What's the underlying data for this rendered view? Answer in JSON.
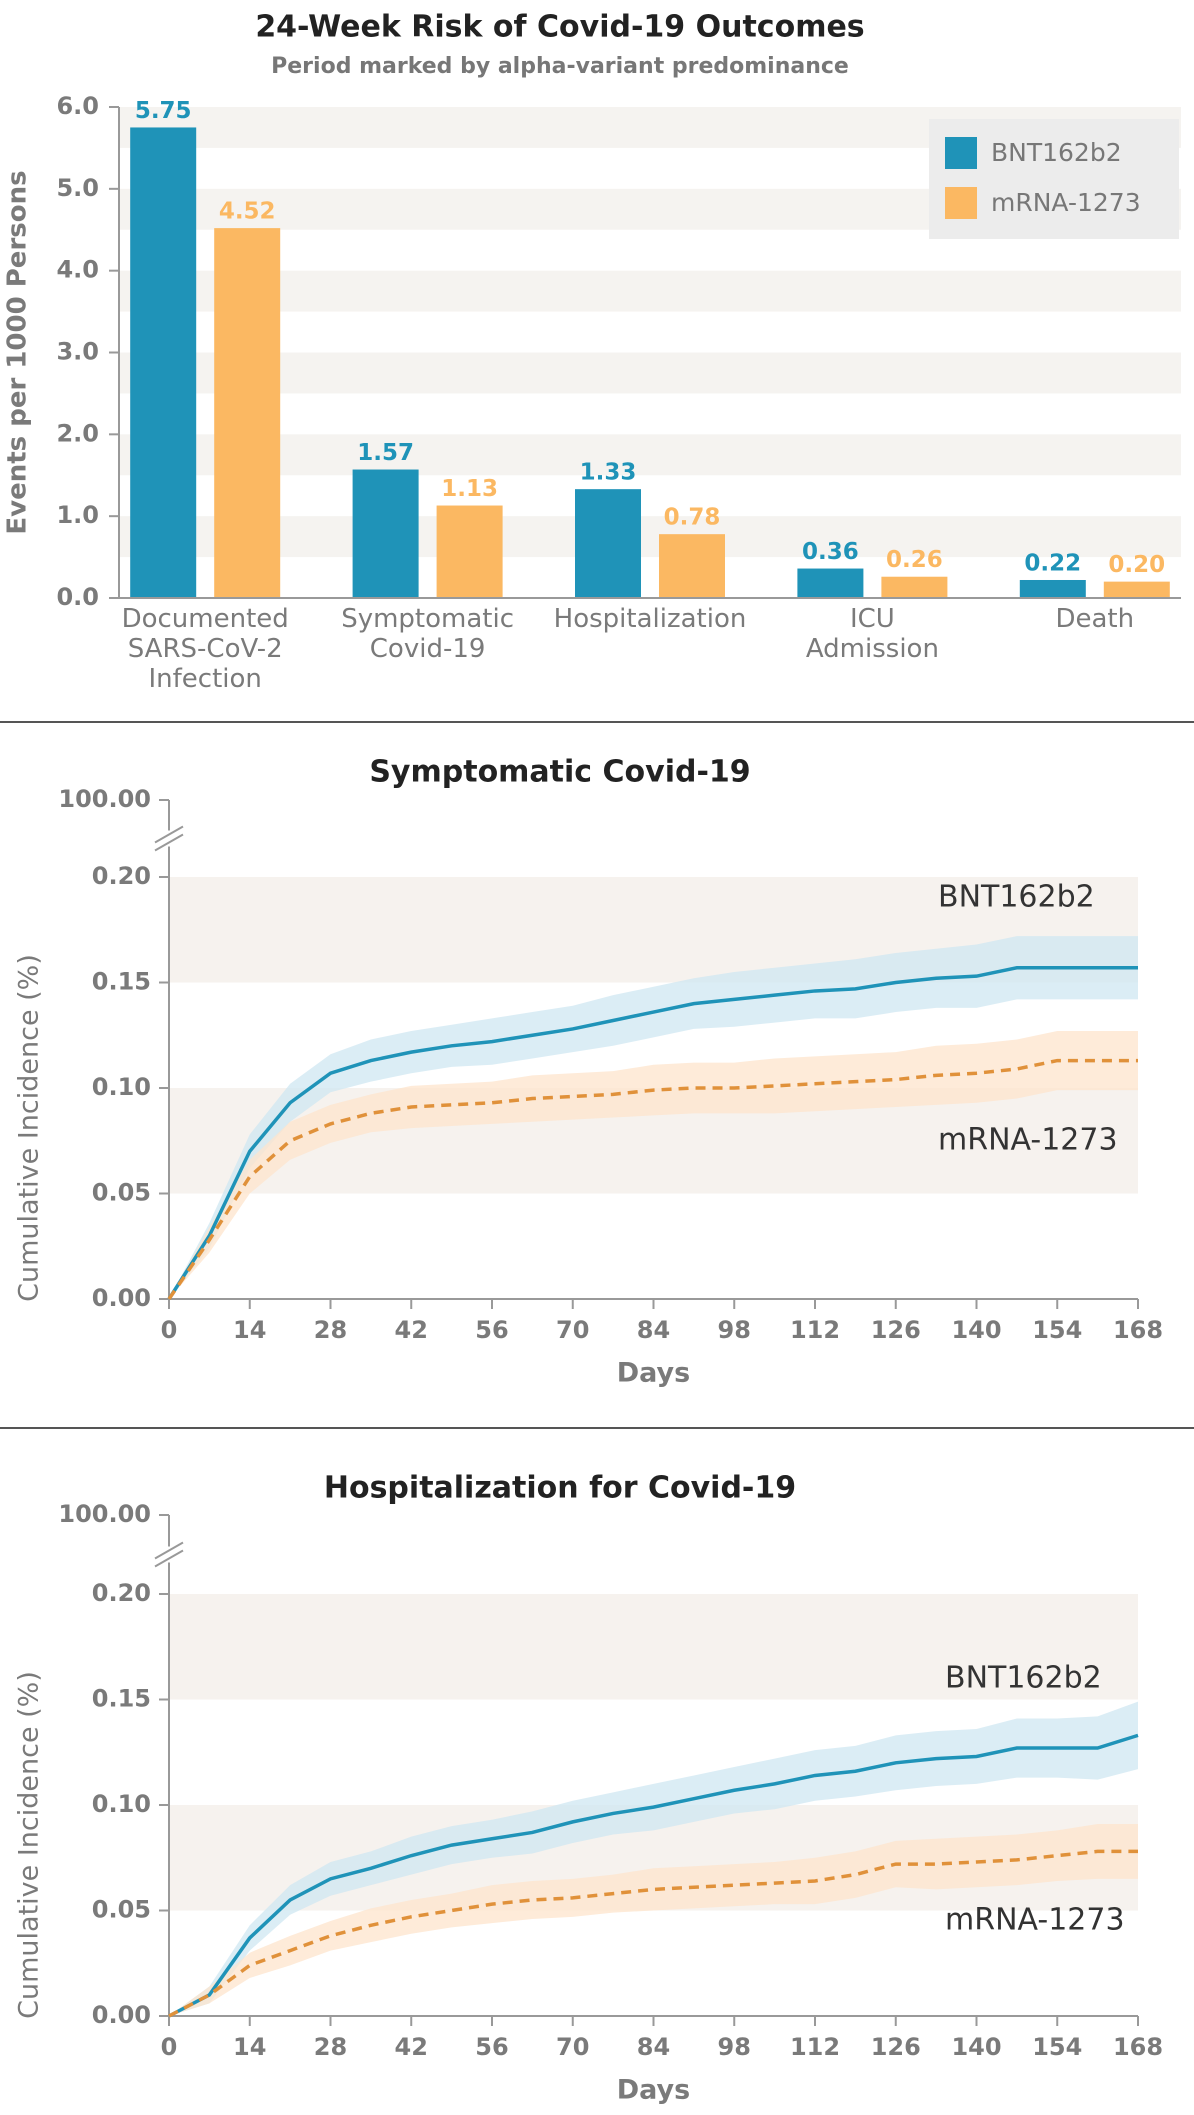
{
  "chart_data": [
    {
      "type": "bar",
      "title": "24-Week Risk of Covid-19 Outcomes",
      "subtitle": "Period marked by alpha-variant predominance",
      "ylabel": "Events per 1000 Persons",
      "categories": [
        "Documented\nSARS-CoV-2\nInfection",
        "Symptomatic\nCovid-19",
        "Hospitalization",
        "ICU\nAdmission",
        "Death"
      ],
      "series": [
        {
          "name": "BNT162b2",
          "color": "#1f93b8",
          "values": [
            5.75,
            1.57,
            1.33,
            0.36,
            0.22
          ],
          "value_labels": [
            "5.75",
            "1.57",
            "1.33",
            "0.36",
            "0.22"
          ]
        },
        {
          "name": "mRNA-1273",
          "color": "#fbb862",
          "values": [
            4.52,
            1.13,
            0.78,
            0.26,
            0.2
          ],
          "value_labels": [
            "4.52",
            "1.13",
            "0.78",
            "0.26",
            "0.20"
          ]
        }
      ],
      "ylim": [
        0,
        6
      ],
      "yticks": [
        {
          "value": 0,
          "label": "0.0"
        },
        {
          "value": 1,
          "label": "1.0"
        },
        {
          "value": 2,
          "label": "2.0"
        },
        {
          "value": 3,
          "label": "3.0"
        },
        {
          "value": 4,
          "label": "4.0"
        },
        {
          "value": 5,
          "label": "5.0"
        },
        {
          "value": 6,
          "label": "6.0"
        }
      ],
      "grid": "half-bands",
      "legend": "top-right"
    },
    {
      "type": "line",
      "title": "Symptomatic Covid-19",
      "xlabel": "Days",
      "ylabel": "Cumulative Incidence (%)",
      "x": [
        0,
        7,
        14,
        21,
        28,
        35,
        42,
        49,
        56,
        63,
        70,
        77,
        84,
        91,
        98,
        105,
        112,
        119,
        126,
        133,
        140,
        147,
        154,
        161,
        168
      ],
      "series": [
        {
          "name": "BNT162b2",
          "color": "#1f93b8",
          "band_color": "#cfe7f1",
          "dashed": false,
          "values": [
            0,
            0.03,
            0.07,
            0.093,
            0.107,
            0.113,
            0.117,
            0.12,
            0.122,
            0.125,
            0.128,
            0.132,
            0.136,
            0.14,
            0.142,
            0.144,
            0.146,
            0.147,
            0.15,
            0.152,
            0.153,
            0.157,
            0.157,
            0.157,
            0.157
          ],
          "lower": [
            0,
            0.024,
            0.062,
            0.084,
            0.098,
            0.103,
            0.107,
            0.11,
            0.111,
            0.114,
            0.117,
            0.12,
            0.124,
            0.128,
            0.129,
            0.131,
            0.133,
            0.133,
            0.136,
            0.138,
            0.138,
            0.142,
            0.142,
            0.142,
            0.142
          ],
          "upper": [
            0,
            0.036,
            0.078,
            0.102,
            0.116,
            0.123,
            0.127,
            0.13,
            0.133,
            0.136,
            0.139,
            0.144,
            0.148,
            0.152,
            0.155,
            0.157,
            0.159,
            0.161,
            0.164,
            0.166,
            0.168,
            0.172,
            0.172,
            0.172,
            0.172
          ]
        },
        {
          "name": "mRNA-1273",
          "color": "#e0913a",
          "band_color": "#fde4cc",
          "dashed": true,
          "values": [
            0,
            0.028,
            0.058,
            0.075,
            0.083,
            0.088,
            0.091,
            0.092,
            0.093,
            0.095,
            0.096,
            0.097,
            0.099,
            0.1,
            0.1,
            0.101,
            0.102,
            0.103,
            0.104,
            0.106,
            0.107,
            0.109,
            0.113,
            0.113,
            0.113
          ],
          "lower": [
            0,
            0.022,
            0.05,
            0.066,
            0.074,
            0.079,
            0.081,
            0.082,
            0.083,
            0.084,
            0.085,
            0.086,
            0.087,
            0.088,
            0.088,
            0.088,
            0.089,
            0.09,
            0.091,
            0.092,
            0.093,
            0.095,
            0.099,
            0.099,
            0.099
          ],
          "upper": [
            0,
            0.034,
            0.066,
            0.084,
            0.092,
            0.097,
            0.101,
            0.102,
            0.103,
            0.106,
            0.107,
            0.108,
            0.111,
            0.112,
            0.112,
            0.114,
            0.115,
            0.116,
            0.117,
            0.12,
            0.121,
            0.123,
            0.127,
            0.127,
            0.127
          ]
        }
      ],
      "xlim": [
        0,
        168
      ],
      "xticks": [
        0,
        14,
        28,
        42,
        56,
        70,
        84,
        98,
        112,
        126,
        140,
        154,
        168
      ],
      "ylim": [
        0,
        0.2
      ],
      "yticks": [
        {
          "value": 0,
          "label": "0.00"
        },
        0.05,
        {
          "value": 0.1,
          "label": "0.10"
        },
        0.15,
        {
          "value": 0.2,
          "label": "0.20"
        }
      ],
      "break_tick": {
        "value": 100,
        "label": "100.00"
      },
      "grid": "bands"
    },
    {
      "type": "line",
      "title": "Hospitalization for Covid-19",
      "xlabel": "Days",
      "ylabel": "Cumulative Incidence (%)",
      "x": [
        0,
        7,
        14,
        21,
        28,
        35,
        42,
        49,
        56,
        63,
        70,
        77,
        84,
        91,
        98,
        105,
        112,
        119,
        126,
        133,
        140,
        147,
        154,
        161,
        168
      ],
      "series": [
        {
          "name": "BNT162b2",
          "color": "#1f93b8",
          "band_color": "#cfe7f1",
          "dashed": false,
          "values": [
            0,
            0.01,
            0.037,
            0.055,
            0.065,
            0.07,
            0.076,
            0.081,
            0.084,
            0.087,
            0.092,
            0.096,
            0.099,
            0.103,
            0.107,
            0.11,
            0.114,
            0.116,
            0.12,
            0.122,
            0.123,
            0.127,
            0.127,
            0.127,
            0.133
          ],
          "lower": [
            0,
            0.006,
            0.031,
            0.048,
            0.057,
            0.062,
            0.067,
            0.072,
            0.075,
            0.077,
            0.082,
            0.086,
            0.088,
            0.092,
            0.096,
            0.098,
            0.102,
            0.104,
            0.107,
            0.109,
            0.11,
            0.113,
            0.113,
            0.112,
            0.117
          ],
          "upper": [
            0,
            0.014,
            0.043,
            0.062,
            0.073,
            0.078,
            0.085,
            0.09,
            0.093,
            0.097,
            0.102,
            0.106,
            0.11,
            0.114,
            0.118,
            0.122,
            0.126,
            0.128,
            0.133,
            0.135,
            0.136,
            0.141,
            0.141,
            0.142,
            0.149
          ]
        },
        {
          "name": "mRNA-1273",
          "color": "#e0913a",
          "band_color": "#fde4cc",
          "dashed": true,
          "values": [
            0,
            0.01,
            0.024,
            0.031,
            0.038,
            0.043,
            0.047,
            0.05,
            0.053,
            0.055,
            0.056,
            0.058,
            0.06,
            0.061,
            0.062,
            0.063,
            0.064,
            0.067,
            0.072,
            0.072,
            0.073,
            0.074,
            0.076,
            0.078,
            0.078
          ],
          "lower": [
            0,
            0.006,
            0.018,
            0.024,
            0.031,
            0.035,
            0.039,
            0.042,
            0.044,
            0.046,
            0.047,
            0.049,
            0.05,
            0.051,
            0.052,
            0.053,
            0.053,
            0.056,
            0.061,
            0.06,
            0.061,
            0.062,
            0.064,
            0.065,
            0.065
          ],
          "upper": [
            0,
            0.014,
            0.03,
            0.038,
            0.045,
            0.051,
            0.055,
            0.058,
            0.062,
            0.064,
            0.065,
            0.067,
            0.07,
            0.071,
            0.072,
            0.073,
            0.075,
            0.078,
            0.083,
            0.084,
            0.085,
            0.086,
            0.088,
            0.091,
            0.091
          ]
        }
      ],
      "xlim": [
        0,
        168
      ],
      "xticks": [
        0,
        14,
        28,
        42,
        56,
        70,
        84,
        98,
        112,
        126,
        140,
        154,
        168
      ],
      "ylim": [
        0,
        0.2
      ],
      "yticks": [
        {
          "value": 0,
          "label": "0.00"
        },
        0.05,
        {
          "value": 0.1,
          "label": "0.10"
        },
        0.15,
        {
          "value": 0.2,
          "label": "0.20"
        }
      ],
      "break_tick": {
        "value": 100,
        "label": "100.00"
      },
      "grid": "bands"
    }
  ]
}
